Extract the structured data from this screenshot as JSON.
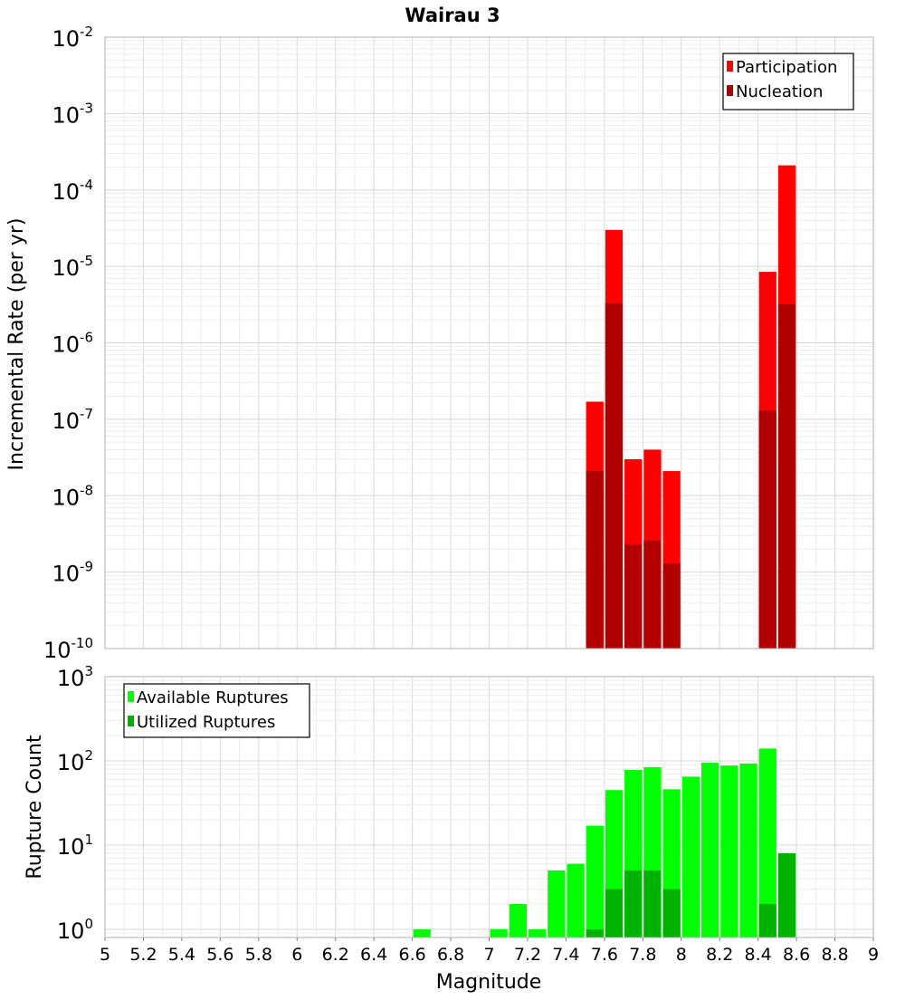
{
  "chart_data": [
    {
      "type": "bar",
      "title": "Wairau 3",
      "xlabel": "",
      "ylabel": "Incremental Rate (per yr)",
      "yscale": "log",
      "ylim": [
        1e-10,
        0.01
      ],
      "xlim": [
        5,
        9
      ],
      "legend_position": "top-right",
      "y_ticks": [
        {
          "base": "10",
          "exp": "-10"
        },
        {
          "base": "10",
          "exp": "-9"
        },
        {
          "base": "10",
          "exp": "-8"
        },
        {
          "base": "10",
          "exp": "-7"
        },
        {
          "base": "10",
          "exp": "-6"
        },
        {
          "base": "10",
          "exp": "-5"
        },
        {
          "base": "10",
          "exp": "-4"
        },
        {
          "base": "10",
          "exp": "-3"
        },
        {
          "base": "10",
          "exp": "-2"
        }
      ],
      "bin_width": 0.1,
      "series": [
        {
          "name": "Participation",
          "color": "#ff0000",
          "x": [
            7.55,
            7.65,
            7.75,
            7.85,
            7.95,
            8.45,
            8.55
          ],
          "values": [
            1.7e-07,
            3e-05,
            3e-08,
            4e-08,
            2.1e-08,
            8.5e-06,
            0.00021
          ]
        },
        {
          "name": "Nucleation",
          "color": "#b20000",
          "x": [
            7.55,
            7.65,
            7.75,
            7.85,
            7.95,
            8.45,
            8.55
          ],
          "values": [
            2.1e-08,
            3.3e-06,
            2.3e-09,
            2.6e-09,
            1.3e-09,
            1.3e-07,
            3.2e-06
          ]
        }
      ]
    },
    {
      "type": "bar",
      "title": "",
      "xlabel": "Magnitude",
      "ylabel": "Rupture Count",
      "yscale": "log",
      "ylim": [
        0.8,
        1000
      ],
      "xlim": [
        5,
        9
      ],
      "legend_position": "top-left",
      "y_ticks": [
        {
          "value": 1,
          "base": "10",
          "exp": "0"
        },
        {
          "value": 10,
          "base": "10",
          "exp": "1"
        },
        {
          "value": 100,
          "base": "10",
          "exp": "2"
        },
        {
          "value": 1000,
          "base": "10",
          "exp": "3"
        }
      ],
      "x_ticks": [
        "5",
        "5.2",
        "5.4",
        "5.6",
        "5.8",
        "6",
        "6.2",
        "6.4",
        "6.6",
        "6.8",
        "7",
        "7.2",
        "7.4",
        "7.6",
        "7.8",
        "8",
        "8.2",
        "8.4",
        "8.6",
        "8.8",
        "9"
      ],
      "bin_width": 0.1,
      "series": [
        {
          "name": "Available Ruptures",
          "color": "#00ff00",
          "x": [
            6.65,
            7.05,
            7.15,
            7.25,
            7.35,
            7.45,
            7.55,
            7.65,
            7.75,
            7.85,
            7.95,
            8.05,
            8.15,
            8.25,
            8.35,
            8.45
          ],
          "values": [
            1,
            1,
            2,
            1,
            5,
            6,
            17,
            45,
            78,
            84,
            46,
            65,
            95,
            88,
            93,
            140
          ]
        },
        {
          "name": "Utilized Ruptures",
          "color": "#00b200",
          "x": [
            7.55,
            7.65,
            7.75,
            7.85,
            7.95,
            8.45,
            8.55
          ],
          "values": [
            1,
            3,
            5,
            5,
            3,
            2,
            8
          ]
        }
      ]
    }
  ]
}
